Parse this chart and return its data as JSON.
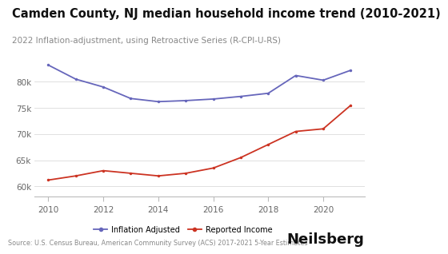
{
  "title": "Camden County, NJ median household income trend (2010-2021)",
  "subtitle": "2022 Inflation-adjustment, using Retroactive Series (R-CPI-U-RS)",
  "source": "Source: U.S. Census Bureau, American Community Survey (ACS) 2017-2021 5-Year Estimates",
  "years": [
    2010,
    2011,
    2012,
    2013,
    2014,
    2015,
    2016,
    2017,
    2018,
    2019,
    2020,
    2021
  ],
  "inflation_adjusted": [
    83200,
    80500,
    79000,
    76800,
    76200,
    76400,
    76700,
    77200,
    77800,
    81200,
    80300,
    82200
  ],
  "reported_income": [
    61200,
    62000,
    63000,
    62500,
    62000,
    62500,
    63500,
    65500,
    68000,
    70500,
    71000,
    75500
  ],
  "line_color_blue": "#6666bb",
  "line_color_red": "#cc3322",
  "bg_color": "#ffffff",
  "ylim": [
    58000,
    86000
  ],
  "xlim": [
    2009.5,
    2021.5
  ],
  "legend_label_blue": "Inflation Adjusted",
  "legend_label_red": "Reported Income",
  "brand": "Neilsberg",
  "title_fontsize": 10.5,
  "subtitle_fontsize": 7.5,
  "tick_fontsize": 7.5,
  "legend_fontsize": 7.0,
  "source_fontsize": 5.8,
  "brand_fontsize": 13
}
